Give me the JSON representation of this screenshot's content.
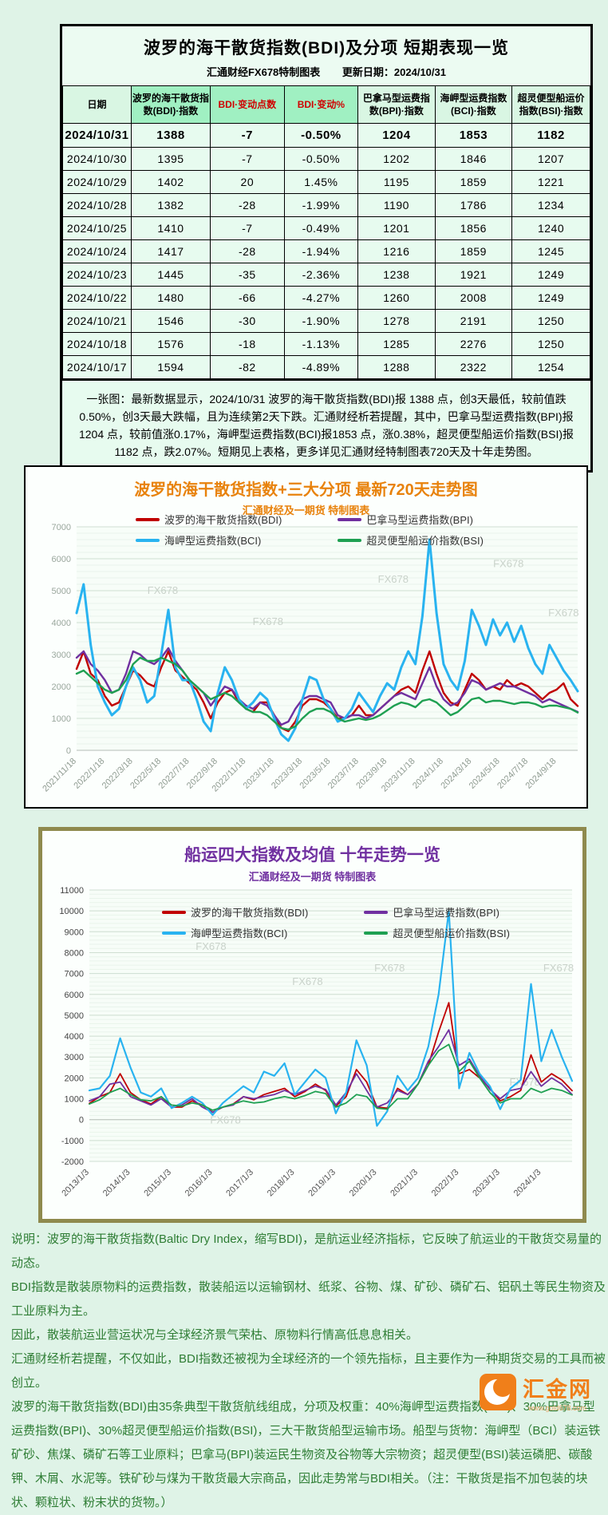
{
  "colors": {
    "page_bg": "#dff3e7",
    "panel_bg": "#ecfbf2",
    "table_header_highlight": "#a0f0c2",
    "table_header_plain": "#d9f6e3",
    "negative_red": "#d00000",
    "chart1_title": "#e8820c",
    "chart2_title": "#7030a0",
    "chart2_border": "#8f8a4e",
    "footer_text": "#2e7d34",
    "logo_orange": "#f07f1a",
    "watermark": "#c9d2ca",
    "bdi": "#c00000",
    "bpi": "#7030a0",
    "bci": "#29b3f0",
    "bsi": "#1fa052"
  },
  "table_panel": {
    "title": "波罗的海干散货指数(BDI)及分项 短期表现一览",
    "subtitle_left": "汇通财经FX678特制图表",
    "subtitle_right": "更新日期：2024/10/31",
    "columns": [
      "日期",
      "波罗的海干散货指数(BDI)·指数",
      "BDI·变动点数",
      "BDI·变动%",
      "巴拿马型运费指数(BPI)·指数",
      "海岬型运费指数(BCI)·指数",
      "超灵便型船运价指数(BSI)·指数"
    ],
    "rows": [
      [
        "2024/10/31",
        "1388",
        "-7",
        "-0.50%",
        "1204",
        "1853",
        "1182"
      ],
      [
        "2024/10/30",
        "1395",
        "-7",
        "-0.50%",
        "1202",
        "1846",
        "1207"
      ],
      [
        "2024/10/29",
        "1402",
        "20",
        "1.45%",
        "1195",
        "1859",
        "1221"
      ],
      [
        "2024/10/28",
        "1382",
        "-28",
        "-1.99%",
        "1190",
        "1786",
        "1234"
      ],
      [
        "2024/10/25",
        "1410",
        "-7",
        "-0.49%",
        "1201",
        "1856",
        "1240"
      ],
      [
        "2024/10/24",
        "1417",
        "-28",
        "-1.94%",
        "1216",
        "1859",
        "1245"
      ],
      [
        "2024/10/23",
        "1445",
        "-35",
        "-2.36%",
        "1238",
        "1921",
        "1249"
      ],
      [
        "2024/10/22",
        "1480",
        "-66",
        "-4.27%",
        "1260",
        "2008",
        "1249"
      ],
      [
        "2024/10/21",
        "1546",
        "-30",
        "-1.90%",
        "1278",
        "2191",
        "1250"
      ],
      [
        "2024/10/18",
        "1576",
        "-18",
        "-1.13%",
        "1285",
        "2276",
        "1250"
      ],
      [
        "2024/10/17",
        "1594",
        "-82",
        "-4.89%",
        "1288",
        "2322",
        "1254"
      ]
    ],
    "note": "一张图：最新数据显示，2024/10/31 波罗的海干散货指数(BDI)报 1388 点，创3天最低，较前值跌0.50%，创3天最大跌幅，且为连续第2天下跌。汇通财经析若提醒，其中，巴拿马型运费指数(BPI)报1204 点，较前值涨0.17%，海岬型运费指数(BCI)报1853 点，涨0.38%，超灵便型船运价指数(BSI)报1182 点，跌2.07%。短期见上表格，更多详见汇通财经特制图表720天及十年走势图。"
  },
  "chart_data": [
    {
      "id": "chart720",
      "type": "line",
      "title": "波罗的海干散货指数+三大分项  最新720天走势图",
      "subtitle": "汇通财经及一期货  特制图表",
      "ylim": [
        0,
        7000
      ],
      "y_step": 1000,
      "minor_step": 200,
      "grid": true,
      "legend_position": "top",
      "watermark_text": "FX678",
      "watermarks": [
        [
          0.17,
          0.3
        ],
        [
          0.38,
          0.44
        ],
        [
          0.63,
          0.25
        ],
        [
          0.86,
          0.18
        ],
        [
          0.97,
          0.4
        ]
      ],
      "x_tick_every": 4,
      "x_tick_labels": [
        "2021/11/18",
        "2022/1/18",
        "2022/3/18",
        "2022/5/18",
        "2022/7/18",
        "2022/9/18",
        "2022/11/18",
        "2023/1/18",
        "2023/3/18",
        "2023/5/18",
        "2023/7/18",
        "2023/9/18",
        "2023/11/18",
        "2024/1/18",
        "2024/3/18",
        "2024/5/18",
        "2024/7/18",
        "2024/9/18"
      ],
      "series": [
        {
          "name": "波罗的海干散货指数(BDI)",
          "color": "#c00000",
          "width": 2.4,
          "values": [
            2550,
            3100,
            2400,
            2200,
            1700,
            1400,
            1500,
            2000,
            2500,
            2350,
            2100,
            2000,
            2600,
            3100,
            2500,
            2300,
            2100,
            1900,
            1500,
            1000,
            1500,
            1800,
            1900,
            1500,
            1300,
            1200,
            1500,
            1500,
            1100,
            700,
            600,
            900,
            1400,
            1600,
            1600,
            1500,
            1300,
            1000,
            1000,
            1100,
            1400,
            1100,
            1100,
            1300,
            1500,
            1700,
            1900,
            2000,
            1800,
            2500,
            3100,
            2400,
            1800,
            1500,
            1400,
            1900,
            2400,
            2200,
            1900,
            2000,
            1900,
            2200,
            2000,
            2100,
            2000,
            1800,
            1600,
            1800,
            1900,
            2100,
            1600,
            1388
          ]
        },
        {
          "name": "巴拿马型运费指数(BPI)",
          "color": "#7030a0",
          "width": 2.4,
          "values": [
            2900,
            3100,
            2700,
            2500,
            2200,
            1800,
            1900,
            2400,
            3100,
            3000,
            2800,
            2700,
            2900,
            3200,
            2800,
            2500,
            2200,
            2000,
            1800,
            1400,
            1700,
            2000,
            1900,
            1600,
            1400,
            1300,
            1500,
            1400,
            1100,
            800,
            900,
            1300,
            1600,
            1700,
            1700,
            1600,
            1500,
            1100,
            1000,
            1100,
            1100,
            1000,
            1100,
            1300,
            1500,
            1700,
            1800,
            1700,
            1600,
            2100,
            2600,
            2000,
            1600,
            1400,
            1500,
            1800,
            2200,
            2100,
            1900,
            2000,
            2100,
            2000,
            2000,
            1900,
            1800,
            1700,
            1500,
            1600,
            1500,
            1400,
            1300,
            1204
          ]
        },
        {
          "name": "海岬型运费指数(BCI)",
          "color": "#29b3f0",
          "width": 3,
          "values": [
            4300,
            5200,
            3300,
            2000,
            1500,
            1100,
            1300,
            2000,
            2600,
            2200,
            1500,
            1700,
            3000,
            4400,
            2600,
            2200,
            2200,
            1600,
            900,
            600,
            1800,
            2600,
            2200,
            1600,
            1300,
            1500,
            1800,
            1600,
            1000,
            500,
            300,
            700,
            1600,
            2300,
            2200,
            1600,
            1300,
            900,
            1000,
            1300,
            1800,
            1500,
            1200,
            1700,
            2100,
            1900,
            2600,
            3100,
            2700,
            4200,
            6600,
            4300,
            2700,
            2200,
            1900,
            2800,
            4400,
            3900,
            3300,
            4100,
            3600,
            4000,
            3400,
            3900,
            3200,
            2700,
            2400,
            3300,
            2900,
            2500,
            2200,
            1853
          ]
        },
        {
          "name": "超灵便型船运价指数(BSI)",
          "color": "#1fa052",
          "width": 2.4,
          "values": [
            2400,
            2500,
            2300,
            2100,
            1900,
            1800,
            1900,
            2200,
            2700,
            2900,
            2800,
            2800,
            2900,
            2800,
            2700,
            2500,
            2200,
            2000,
            1800,
            1600,
            1700,
            1800,
            1700,
            1500,
            1300,
            1200,
            1200,
            1100,
            900,
            700,
            650,
            750,
            1000,
            1200,
            1300,
            1300,
            1200,
            1000,
            900,
            950,
            1000,
            950,
            1000,
            1100,
            1250,
            1400,
            1500,
            1450,
            1350,
            1550,
            1600,
            1500,
            1300,
            1100,
            1200,
            1400,
            1600,
            1650,
            1500,
            1550,
            1550,
            1500,
            1450,
            1500,
            1500,
            1450,
            1350,
            1400,
            1400,
            1350,
            1300,
            1182
          ]
        }
      ]
    },
    {
      "id": "chart10y",
      "type": "line",
      "title": "船运四大指数及均值 十年走势一览",
      "subtitle": "汇通财经及一期货 特制图表",
      "ylim": [
        -2000,
        11000
      ],
      "y_step": 1000,
      "minor_step": 200,
      "grid": true,
      "legend_position": "top",
      "watermark_text": "FX678",
      "watermarks": [
        [
          0.25,
          0.22
        ],
        [
          0.45,
          0.35
        ],
        [
          0.62,
          0.3
        ],
        [
          0.9,
          0.72
        ],
        [
          0.28,
          0.86
        ],
        [
          0.97,
          0.3
        ]
      ],
      "x_tick_every": 4,
      "x_tick_labels": [
        "2013/1/3",
        "2014/1/3",
        "2015/1/3",
        "2016/1/3",
        "2017/1/3",
        "2018/1/3",
        "2019/1/3",
        "2020/1/3",
        "2021/1/3",
        "2022/1/3",
        "2023/1/3",
        "2024/1/3"
      ],
      "series": [
        {
          "name": "波罗的海干散货指数(BDI)",
          "color": "#c00000",
          "width": 1.8,
          "values": [
            780,
            1100,
            1300,
            2200,
            1300,
            950,
            750,
            1100,
            600,
            600,
            900,
            700,
            350,
            600,
            750,
            1100,
            950,
            1200,
            1350,
            1500,
            1100,
            1350,
            1700,
            1400,
            650,
            1100,
            2400,
            1800,
            600,
            550,
            1500,
            1200,
            1700,
            2600,
            4200,
            5600,
            2200,
            2400,
            2000,
            1500,
            900,
            1100,
            1400,
            3100,
            1800,
            2200,
            1900,
            1388
          ]
        },
        {
          "name": "巴拿马型运费指数(BPI)",
          "color": "#7030a0",
          "width": 1.8,
          "values": [
            900,
            1100,
            1700,
            1800,
            1100,
            900,
            700,
            1000,
            600,
            700,
            1000,
            600,
            350,
            600,
            700,
            1100,
            1000,
            1100,
            1200,
            1400,
            1200,
            1400,
            1600,
            1450,
            700,
            1300,
            2200,
            1400,
            600,
            800,
            1400,
            1200,
            1700,
            2800,
            3500,
            4300,
            2600,
            2900,
            2100,
            1450,
            1000,
            1400,
            1500,
            2300,
            1600,
            2000,
            1700,
            1204
          ]
        },
        {
          "name": "海岬型运费指数(BCI)",
          "color": "#29b3f0",
          "width": 2.2,
          "values": [
            1400,
            1500,
            2100,
            3900,
            2500,
            1300,
            1100,
            1500,
            550,
            800,
            1100,
            800,
            220,
            800,
            1200,
            1600,
            1300,
            2300,
            2100,
            2700,
            1200,
            1800,
            2400,
            2000,
            300,
            1300,
            3800,
            2600,
            -300,
            400,
            2100,
            1400,
            2000,
            3500,
            6000,
            10000,
            1500,
            3200,
            2200,
            1600,
            500,
            1500,
            1900,
            6500,
            2800,
            4300,
            3000,
            1853
          ]
        },
        {
          "name": "超灵便型船运价指数(BSI)",
          "color": "#1fa052",
          "width": 1.8,
          "values": [
            750,
            950,
            1300,
            1500,
            1200,
            950,
            900,
            1100,
            700,
            650,
            800,
            700,
            450,
            600,
            750,
            900,
            800,
            850,
            1000,
            1100,
            1000,
            1150,
            1350,
            1250,
            600,
            800,
            1200,
            1100,
            550,
            500,
            1000,
            1000,
            1700,
            2600,
            3300,
            3600,
            2300,
            2800,
            2000,
            1300,
            800,
            1000,
            1000,
            1500,
            1300,
            1500,
            1400,
            1182
          ]
        }
      ]
    }
  ],
  "footer": {
    "paragraphs": [
      "说明：波罗的海干散货指数(Baltic Dry Index，缩写BDI)，是航运业经济指标，它反映了航运业的干散货交易量的动态。",
      "BDI指数是散装原物料的运费指数，散装船运以运输钢材、纸浆、谷物、煤、矿砂、磷矿石、铝矾土等民生物资及工业原料为主。",
      "因此，散装航运业营运状况与全球经济景气荣枯、原物料行情高低息息相关。",
      "汇通财经析若提醒，不仅如此，BDI指数还被视为全球经济的一个领先指标，且主要作为一种期货交易的工具而被创立。",
      "波罗的海干散货指数(BDI)由35条典型干散货航线组成，分项及权重：40%海岬型运费指数(BCI)、30%巴拿马型运费指数(BPI)、30%超灵便型船运价指数(BSI)，三大干散货船型运输市场。船型与货物：海岬型（BCI）装运铁矿砂、焦煤、磷矿石等工业原料；巴拿马(BPI)装运民生物资及谷物等大宗物资；超灵便型(BSI)装运磷肥、碳酸钾、木屑、水泥等。铁矿砂与煤为干散货最大宗商品，因此走势常与BDI相关。（注：干散货是指不加包装的块状、颗粒状、粉末状的货物。）"
    ]
  },
  "logo": {
    "name": "汇金网",
    "url_text": "www.gold678.com"
  }
}
